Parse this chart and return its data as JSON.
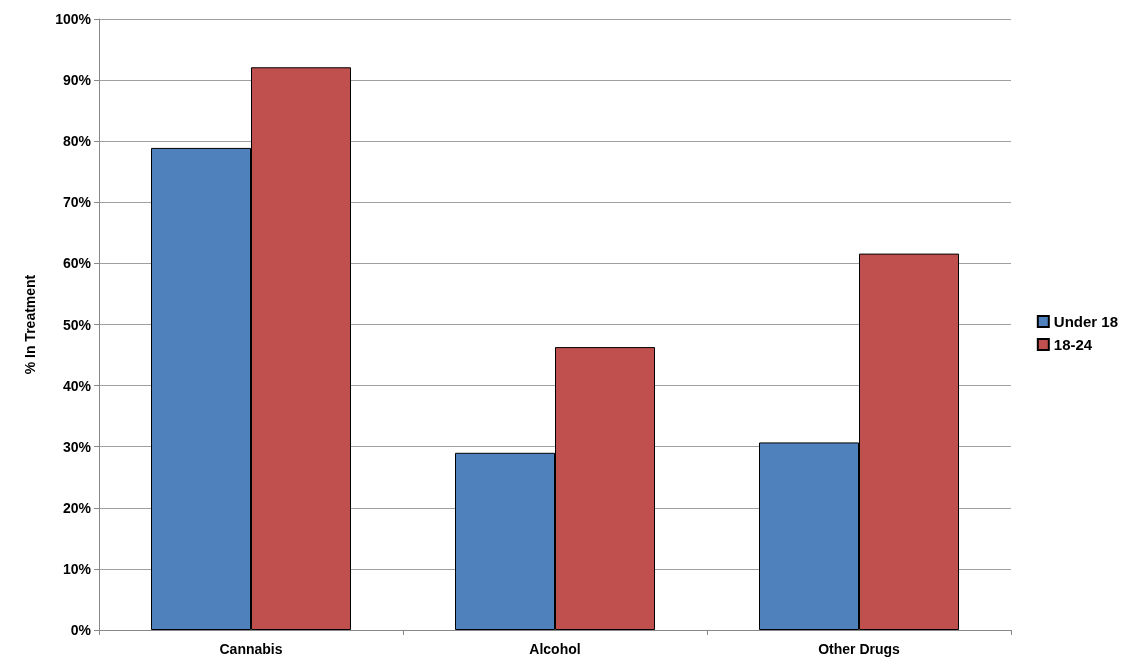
{
  "chart_data": {
    "type": "bar",
    "ylabel": "% In Treatment",
    "categories": [
      "Cannabis",
      "Alcohol",
      "Other Drugs"
    ],
    "series": [
      {
        "name": "Under 18",
        "color": "#4f81bd",
        "values": [
          78.9,
          29.0,
          30.7
        ]
      },
      {
        "name": "18-24",
        "color": "#c0504d",
        "values": [
          92.1,
          46.3,
          61.6
        ]
      }
    ],
    "ylim": [
      0,
      100
    ],
    "yticks": [
      {
        "value": 0,
        "label": "0%"
      },
      {
        "value": 10,
        "label": "10%"
      },
      {
        "value": 20,
        "label": "20%"
      },
      {
        "value": 30,
        "label": "30%"
      },
      {
        "value": 40,
        "label": "40%"
      },
      {
        "value": 50,
        "label": "50%"
      },
      {
        "value": 60,
        "label": "60%"
      },
      {
        "value": 70,
        "label": "70%"
      },
      {
        "value": 80,
        "label": "80%"
      },
      {
        "value": 90,
        "label": "90%"
      },
      {
        "value": 100,
        "label": "100%"
      }
    ],
    "grid": "y",
    "legend": "right"
  }
}
